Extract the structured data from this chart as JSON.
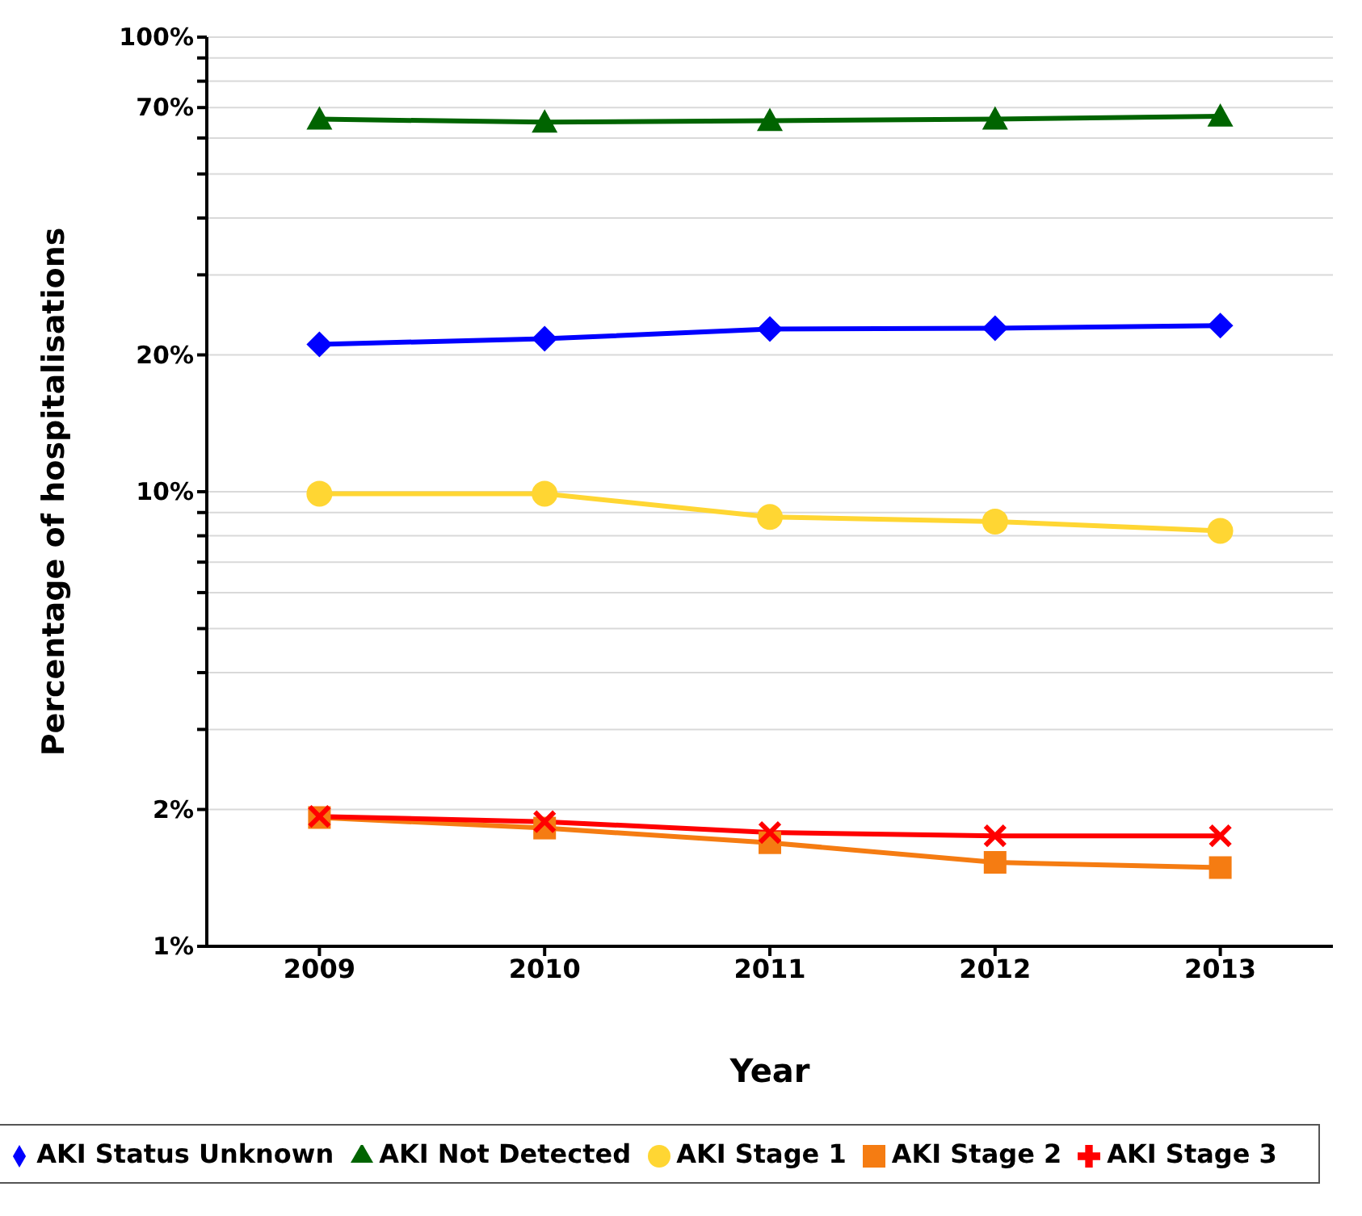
{
  "chart_data": {
    "type": "line",
    "xlabel": "Year",
    "ylabel": "Percentage of hospitalisations",
    "categories": [
      "2009",
      "2010",
      "2011",
      "2012",
      "2013"
    ],
    "log": "y",
    "ylim": [
      1,
      100
    ],
    "yticks": [
      {
        "value": 1,
        "label": "1%"
      },
      {
        "value": 2,
        "label": "2%"
      },
      {
        "value": 3,
        "label": null
      },
      {
        "value": 4,
        "label": null
      },
      {
        "value": 5,
        "label": null
      },
      {
        "value": 6,
        "label": null
      },
      {
        "value": 7,
        "label": null
      },
      {
        "value": 8,
        "label": null
      },
      {
        "value": 9,
        "label": null
      },
      {
        "value": 10,
        "label": "10%"
      },
      {
        "value": 20,
        "label": "20%"
      },
      {
        "value": 30,
        "label": null
      },
      {
        "value": 40,
        "label": null
      },
      {
        "value": 50,
        "label": null
      },
      {
        "value": 60,
        "label": null
      },
      {
        "value": 70,
        "label": "70%"
      },
      {
        "value": 80,
        "label": null
      },
      {
        "value": 90,
        "label": null
      },
      {
        "value": 100,
        "label": "100%"
      }
    ],
    "grid": "y",
    "legend": "bottom",
    "series": [
      {
        "name": "AKI Status Unknown",
        "color": "#0000ff",
        "marker": "diamond",
        "values": [
          21.1,
          21.7,
          22.8,
          22.9,
          23.2
        ]
      },
      {
        "name": "AKI Not Detected",
        "color": "#006400",
        "marker": "triangle",
        "values": [
          66,
          65,
          65.5,
          66,
          67
        ]
      },
      {
        "name": "AKI Stage 1",
        "color": "#ffd633",
        "marker": "circle",
        "values": [
          9.9,
          9.9,
          8.8,
          8.6,
          8.2
        ]
      },
      {
        "name": "AKI Stage 2",
        "color": "#f57c12",
        "marker": "square",
        "values": [
          1.92,
          1.82,
          1.69,
          1.53,
          1.49
        ]
      },
      {
        "name": "AKI Stage 3",
        "color": "#ff0000",
        "marker": "cross",
        "values": [
          1.93,
          1.88,
          1.78,
          1.75,
          1.75
        ]
      }
    ]
  }
}
